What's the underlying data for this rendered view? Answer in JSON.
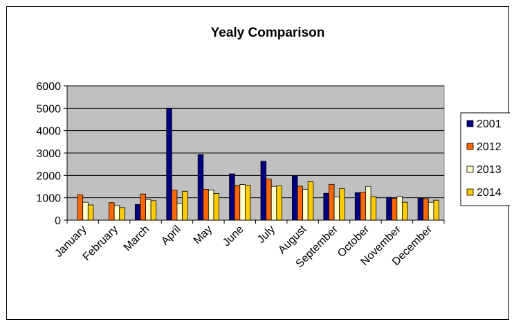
{
  "chart_data": {
    "type": "bar",
    "title": "Yealy Comparison",
    "xlabel": "",
    "ylabel": "",
    "ylim": [
      0,
      6000
    ],
    "yticks": [
      0,
      1000,
      2000,
      3000,
      4000,
      5000,
      6000
    ],
    "grid": true,
    "legend_position": "right",
    "categories": [
      "January",
      "February",
      "March",
      "April",
      "May",
      "June",
      "July",
      "August",
      "September",
      "October",
      "November",
      "December"
    ],
    "series": [
      {
        "name": "2001",
        "color": "#000080",
        "values": [
          0,
          0,
          700,
          5000,
          2930,
          2070,
          2630,
          1970,
          1200,
          1230,
          1020,
          980
        ]
      },
      {
        "name": "2012",
        "color": "#ff6600",
        "values": [
          1130,
          780,
          1170,
          1340,
          1380,
          1550,
          1840,
          1520,
          1600,
          1250,
          970,
          960
        ]
      },
      {
        "name": "2013",
        "color": "#ffffcc",
        "values": [
          800,
          650,
          920,
          730,
          1340,
          1590,
          1510,
          1380,
          1030,
          1510,
          1060,
          800
        ]
      },
      {
        "name": "2014",
        "color": "#ffcc00",
        "values": [
          680,
          560,
          870,
          1290,
          1190,
          1560,
          1530,
          1720,
          1410,
          1050,
          800,
          890
        ]
      }
    ]
  }
}
